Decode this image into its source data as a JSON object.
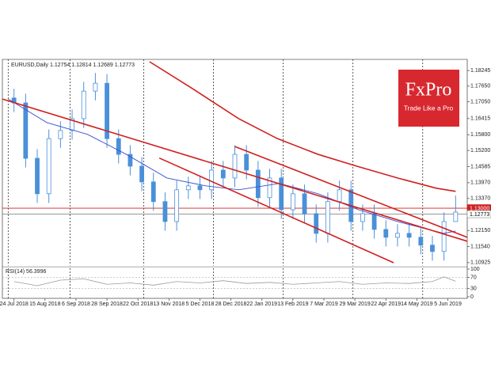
{
  "chart_data": {
    "type": "candlestick",
    "title": "EURUSD,Daily  1.12754 1.12814 1.12689 1.12773",
    "color": "#4a90d9",
    "xlim": [
      -6,
      234
    ],
    "ylim": [
      1.1083,
      1.1861
    ],
    "yticks": [
      1.18245,
      {
        "value": 1.1765,
        "label": "1.17650"
      },
      {
        "value": 1.1705,
        "label": "1.17050"
      },
      1.16415,
      {
        "value": 1.158,
        "label": "1.15800"
      },
      {
        "value": 1.152,
        "label": "1.15200"
      },
      1.14585,
      {
        "value": 1.1397,
        "label": "1.13970"
      },
      {
        "value": 1.1337,
        "label": "1.13370"
      },
      {
        "value": 1.1215,
        "label": "1.12150"
      },
      {
        "value": 1.1154,
        "label": "1.11540"
      },
      1.10925
    ],
    "xticks": [
      {
        "value": 0,
        "label": "24 Jul 2018"
      },
      {
        "value": 16,
        "label": "15 Aug 2018"
      },
      {
        "value": 32,
        "label": "6 Sep 2018"
      },
      {
        "value": 48,
        "label": "28 Sep 2018"
      },
      {
        "value": 64,
        "label": "22 Oct 2018"
      },
      {
        "value": 80,
        "label": "13 Nov 2018"
      },
      {
        "value": 96,
        "label": "5 Dec 2018"
      },
      {
        "value": 112,
        "label": "28 Dec 2018"
      },
      {
        "value": 128,
        "label": "22 Jan 2019"
      },
      {
        "value": 144,
        "label": "13 Feb 2019"
      },
      {
        "value": 160,
        "label": "7 Mar 2019"
      },
      {
        "value": 176,
        "label": "29 Mar 2019"
      },
      {
        "value": 192,
        "label": "22 Apr 2019"
      },
      {
        "value": 208,
        "label": "14 May 2019"
      },
      {
        "value": 224,
        "label": "5 Jun 2019"
      }
    ],
    "xgrid": [
      -3,
      29,
      67,
      103,
      139,
      175,
      211
    ],
    "candles": {
      "x": [
        0,
        6,
        12,
        18,
        24,
        30,
        36,
        42,
        48,
        54,
        60,
        66,
        72,
        78,
        84,
        90,
        96,
        102,
        108,
        114,
        120,
        126,
        132,
        138,
        144,
        150,
        156,
        162,
        168,
        174,
        180,
        186,
        192,
        198,
        204,
        210,
        216,
        222,
        228
      ],
      "open": [
        1.172,
        1.1701,
        1.149,
        1.1355,
        1.1565,
        1.1596,
        1.1641,
        1.1746,
        1.1776,
        1.1565,
        1.1505,
        1.146,
        1.14,
        1.1325,
        1.1249,
        1.137,
        1.1385,
        1.137,
        1.1445,
        1.1415,
        1.1505,
        1.1445,
        1.134,
        1.1415,
        1.1294,
        1.1355,
        1.1279,
        1.1204,
        1.1325,
        1.137,
        1.1249,
        1.1279,
        1.1219,
        1.1189,
        1.1204,
        1.1189,
        1.1159,
        1.1135,
        1.1249
      ],
      "high": [
        1.1755,
        1.1736,
        1.1525,
        1.16,
        1.1631,
        1.1676,
        1.1781,
        1.1815,
        1.1811,
        1.16,
        1.154,
        1.1495,
        1.1435,
        1.136,
        1.1405,
        1.142,
        1.142,
        1.148,
        1.148,
        1.154,
        1.154,
        1.148,
        1.145,
        1.145,
        1.139,
        1.139,
        1.1314,
        1.136,
        1.1405,
        1.1405,
        1.1314,
        1.1314,
        1.1254,
        1.1239,
        1.1239,
        1.1224,
        1.1194,
        1.1284,
        1.1348
      ],
      "low": [
        1.1666,
        1.1455,
        1.132,
        1.132,
        1.153,
        1.1561,
        1.1606,
        1.1711,
        1.153,
        1.147,
        1.1425,
        1.1365,
        1.129,
        1.1214,
        1.1214,
        1.1335,
        1.1335,
        1.1335,
        1.138,
        1.138,
        1.141,
        1.1305,
        1.1305,
        1.1259,
        1.1259,
        1.1244,
        1.1169,
        1.1169,
        1.129,
        1.1214,
        1.1214,
        1.1184,
        1.1154,
        1.1154,
        1.1154,
        1.1124,
        1.11,
        1.11,
        1.125
      ],
      "close": [
        1.1701,
        1.149,
        1.1355,
        1.1565,
        1.1596,
        1.1641,
        1.1746,
        1.1776,
        1.1565,
        1.1505,
        1.146,
        1.14,
        1.1325,
        1.1249,
        1.137,
        1.1385,
        1.137,
        1.1445,
        1.1415,
        1.1505,
        1.1445,
        1.134,
        1.1415,
        1.1294,
        1.1355,
        1.1279,
        1.1204,
        1.1325,
        1.137,
        1.1249,
        1.1279,
        1.1219,
        1.1189,
        1.1204,
        1.1189,
        1.1159,
        1.1135,
        1.1249,
        1.1285
      ]
    },
    "overlays": [
      {
        "color": "#3a4fd0",
        "x": [
          -3,
          17,
          38,
          58,
          79,
          99,
          116,
          137,
          157,
          178,
          198,
          214,
          222,
          228
        ],
        "values": [
          1.1716,
          1.1626,
          1.1581,
          1.1505,
          1.1415,
          1.1385,
          1.137,
          1.1394,
          1.1355,
          1.1294,
          1.1249,
          1.1219,
          1.1204,
          1.1213
        ]
      },
      {
        "color": "#d0201f",
        "x": [
          70,
          91,
          116,
          136,
          157,
          177,
          198,
          218,
          228
        ],
        "values": [
          1.1858,
          1.1761,
          1.1641,
          1.1565,
          1.1505,
          1.146,
          1.1415,
          1.1376,
          1.1364
        ]
      },
      {
        "color": "#d0201f",
        "x": [
          -6,
          234
        ],
        "values": [
          1.1716,
          1.1174
        ]
      },
      {
        "color": "#d0201f",
        "x": [
          114,
          234
        ],
        "values": [
          1.1535,
          1.1189
        ]
      },
      {
        "color": "#d0201f",
        "x": [
          75,
          196
        ],
        "values": [
          1.1491,
          1.1092
        ]
      }
    ],
    "levels": [
      {
        "value": 1.13,
        "label": "1.13000",
        "color": "#d0201f"
      },
      {
        "value": 1.12773,
        "label": "1.12773",
        "color": "#888888"
      }
    ],
    "logo": {
      "title": "FxPro",
      "subtitle": "Trade Like a Pro",
      "color": "#d8282f"
    },
    "rsi": {
      "label": "RSI(14) 56.3996",
      "color": "#9a9a9a",
      "ylim": [
        0,
        100
      ],
      "yticks": [
        100,
        70,
        30,
        0
      ],
      "dotted": [
        70,
        30
      ],
      "x": [
        0,
        12,
        24,
        36,
        48,
        60,
        72,
        84,
        96,
        108,
        120,
        132,
        144,
        156,
        168,
        180,
        192,
        204,
        216,
        222,
        228
      ],
      "values": [
        55,
        40,
        60,
        65,
        45,
        50,
        42,
        55,
        50,
        58,
        48,
        52,
        45,
        50,
        55,
        45,
        50,
        48,
        55,
        72,
        56
      ]
    }
  }
}
